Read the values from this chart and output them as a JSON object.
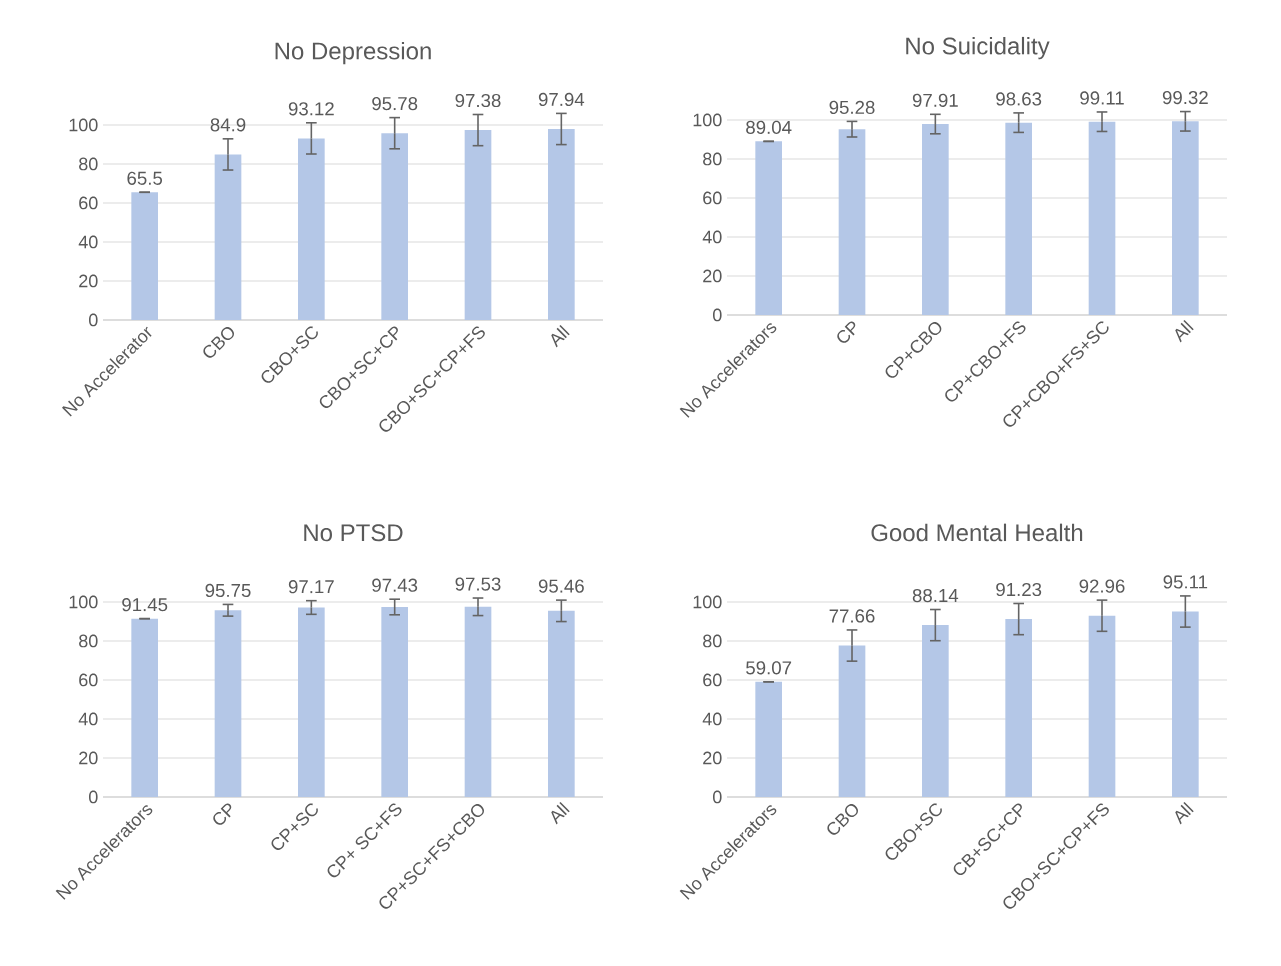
{
  "chart_data": [
    {
      "type": "bar",
      "title": "No Depression",
      "categories": [
        "No Accelerator",
        "CBO",
        "CBO+SC",
        "CBO+SC+CP",
        "CBO+SC+CP+FS",
        "All"
      ],
      "values": [
        65.5,
        84.9,
        93.12,
        95.78,
        97.38,
        97.94
      ],
      "errors": [
        0,
        8,
        8,
        8,
        8,
        8
      ],
      "color": "#b4c7e7",
      "ylim": [
        0,
        100
      ],
      "yticks": [
        0,
        20,
        40,
        60,
        80,
        100
      ],
      "grid": "y",
      "data_labels": true
    },
    {
      "type": "bar",
      "title": "No Suicidality",
      "categories": [
        "No Accelerators",
        "CP",
        "CP+CBO",
        "CP+CBO+FS",
        "CP+CBO+FS+SC",
        "All"
      ],
      "values": [
        89.04,
        95.28,
        97.91,
        98.63,
        99.11,
        99.32
      ],
      "errors": [
        0,
        4,
        5,
        5,
        5,
        5
      ],
      "color": "#b4c7e7",
      "ylim": [
        0,
        100
      ],
      "yticks": [
        0,
        20,
        40,
        60,
        80,
        100
      ],
      "grid": "y",
      "data_labels": true
    },
    {
      "type": "bar",
      "title": "No PTSD",
      "categories": [
        "No Accelerators",
        "CP",
        "CP+SC",
        "CP+ SC+FS",
        "CP+SC+FS+CBO",
        "All"
      ],
      "values": [
        91.45,
        95.75,
        97.17,
        97.43,
        97.53,
        95.46
      ],
      "errors": [
        0,
        3,
        3.5,
        4,
        4.5,
        5.5
      ],
      "color": "#b4c7e7",
      "ylim": [
        0,
        100
      ],
      "yticks": [
        0,
        20,
        40,
        60,
        80,
        100
      ],
      "grid": "y",
      "data_labels": true
    },
    {
      "type": "bar",
      "title": "Good Mental Health",
      "categories": [
        "No Accelerators",
        "CBO",
        "CBO+SC",
        "CB+SC+CP",
        "CBO+SC+CP+FS",
        "All"
      ],
      "values": [
        59.07,
        77.66,
        88.14,
        91.23,
        92.96,
        95.11
      ],
      "errors": [
        0,
        8,
        8,
        8,
        8,
        8
      ],
      "color": "#b4c7e7",
      "ylim": [
        0,
        100
      ],
      "yticks": [
        0,
        20,
        40,
        60,
        80,
        100
      ],
      "grid": "y",
      "data_labels": true
    }
  ]
}
